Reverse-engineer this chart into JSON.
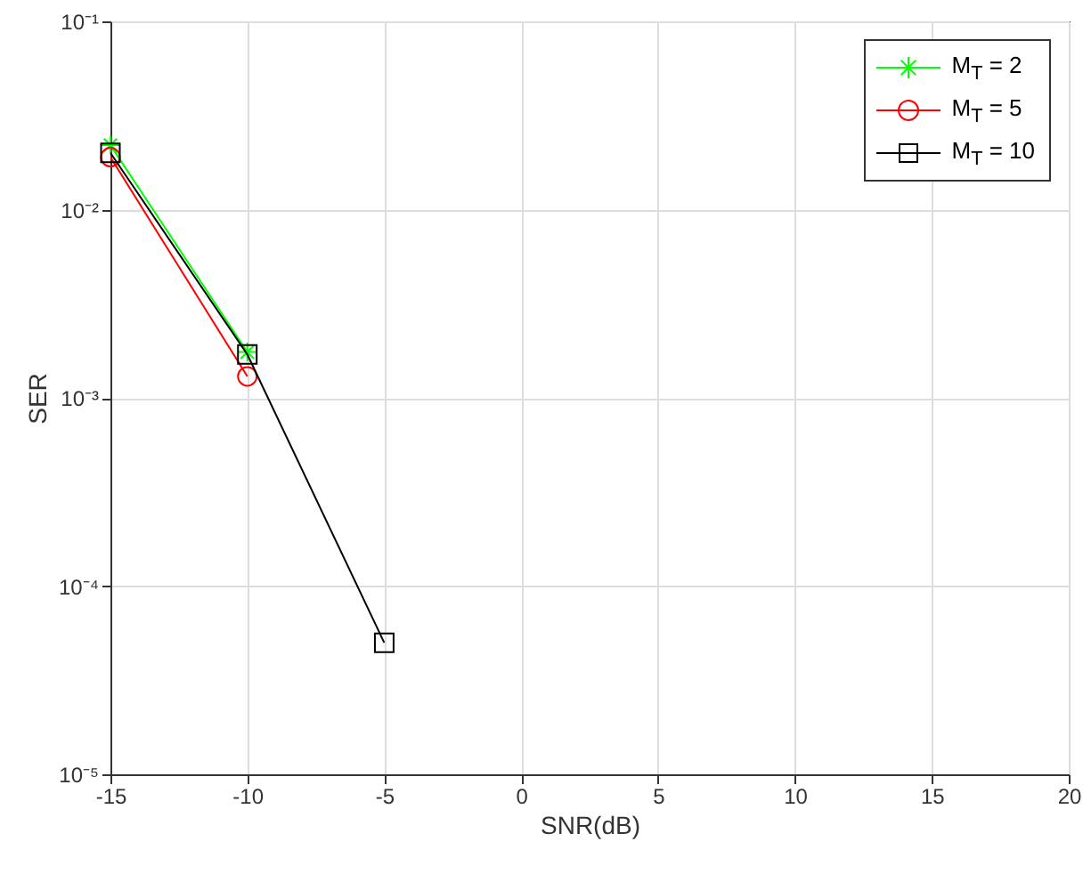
{
  "chart_data": {
    "type": "line",
    "xlabel": "SNR(dB)",
    "ylabel": "SER",
    "log": "y",
    "grid": true,
    "legend": "top right",
    "x": [
      -15,
      -10,
      -5
    ],
    "xlim": [
      -15,
      20
    ],
    "xticks": [
      -15,
      -10,
      -5,
      0,
      5,
      10,
      15,
      20
    ],
    "ylim": [
      1e-05,
      0.1
    ],
    "yticks": [
      {
        "value": 1e-05,
        "label": "10⁻⁵"
      },
      {
        "value": 0.0001,
        "label": "10⁻⁴"
      },
      {
        "value": 0.001,
        "label": "10⁻³"
      },
      {
        "value": 0.01,
        "label": "10⁻²"
      },
      {
        "value": 0.1,
        "label": "10⁻¹"
      }
    ],
    "series": [
      {
        "name": "M$_{T}$ = 2",
        "color": "#00ff00",
        "marker": "cross",
        "values": [
          0.022,
          0.00175,
          null
        ]
      },
      {
        "name": "M$_{T}$ = 5",
        "color": "#ff0000",
        "marker": "circle",
        "values": [
          0.019,
          0.0013,
          null
        ]
      },
      {
        "name": "M$_{T}$ = 10",
        "color": "#000000",
        "marker": "square",
        "values": [
          0.02,
          0.0017,
          5e-05
        ]
      }
    ]
  }
}
